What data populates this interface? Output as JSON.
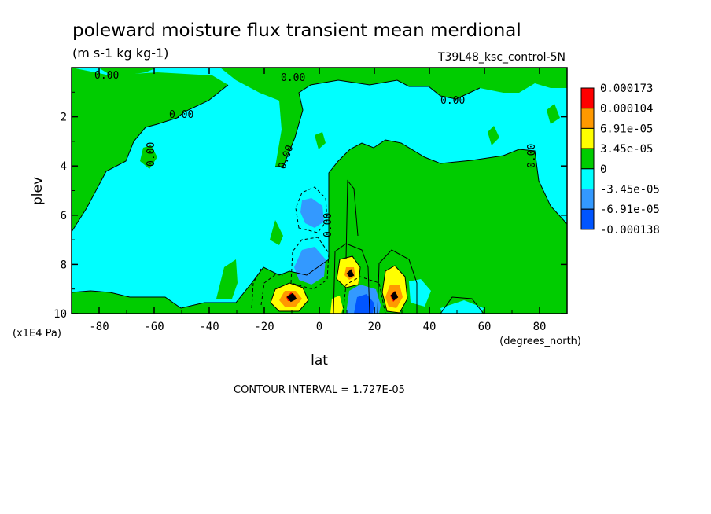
{
  "chart_data": {
    "type": "heatmap",
    "title": "poleward moisture flux transient mean merdional",
    "units": "(m s-1 kg kg-1)",
    "experiment": "T39L48_ksc_control-5N",
    "xlabel": "lat",
    "x_unit_note": "(degrees_north)",
    "ylabel": "plev",
    "y_unit_note": "(x1E4 Pa)",
    "xlim": [
      -90,
      90
    ],
    "ylim": [
      10,
      0
    ],
    "x_ticks": [
      "-80",
      "-60",
      "-40",
      "-20",
      "0",
      "20",
      "40",
      "60",
      "80"
    ],
    "y_ticks": [
      "2",
      "4",
      "6",
      "8",
      "10"
    ],
    "contour_interval_text": "CONTOUR INTERVAL = 1.727E-05",
    "zero_contour_label": "0.00",
    "legend": {
      "levels": [
        "0.000173",
        "0.000104",
        "6.91e-05",
        "3.45e-05",
        "0",
        "-3.45e-05",
        "-6.91e-05",
        "-0.000138"
      ],
      "colors": [
        "#ff0000",
        "#ff9900",
        "#ffff00",
        "#00cc00",
        "#00ffff",
        "#3399ff",
        "#0055ff"
      ]
    },
    "features": [
      {
        "label": "max",
        "lat": -10,
        "plev": 9.3,
        "value": 0.00015
      },
      {
        "label": "max",
        "lat": 26,
        "plev": 9.2,
        "value": 0.00014
      },
      {
        "label": "max",
        "lat": 10,
        "plev": 8.4,
        "value": 9e-05
      },
      {
        "label": "min",
        "lat": 16,
        "plev": 9.6,
        "value": -0.00012
      },
      {
        "label": "min",
        "lat": -2,
        "plev": 8.2,
        "value": -6e-05
      },
      {
        "label": "min",
        "lat": -1,
        "plev": 5.9,
        "value": -6e-05
      }
    ]
  }
}
